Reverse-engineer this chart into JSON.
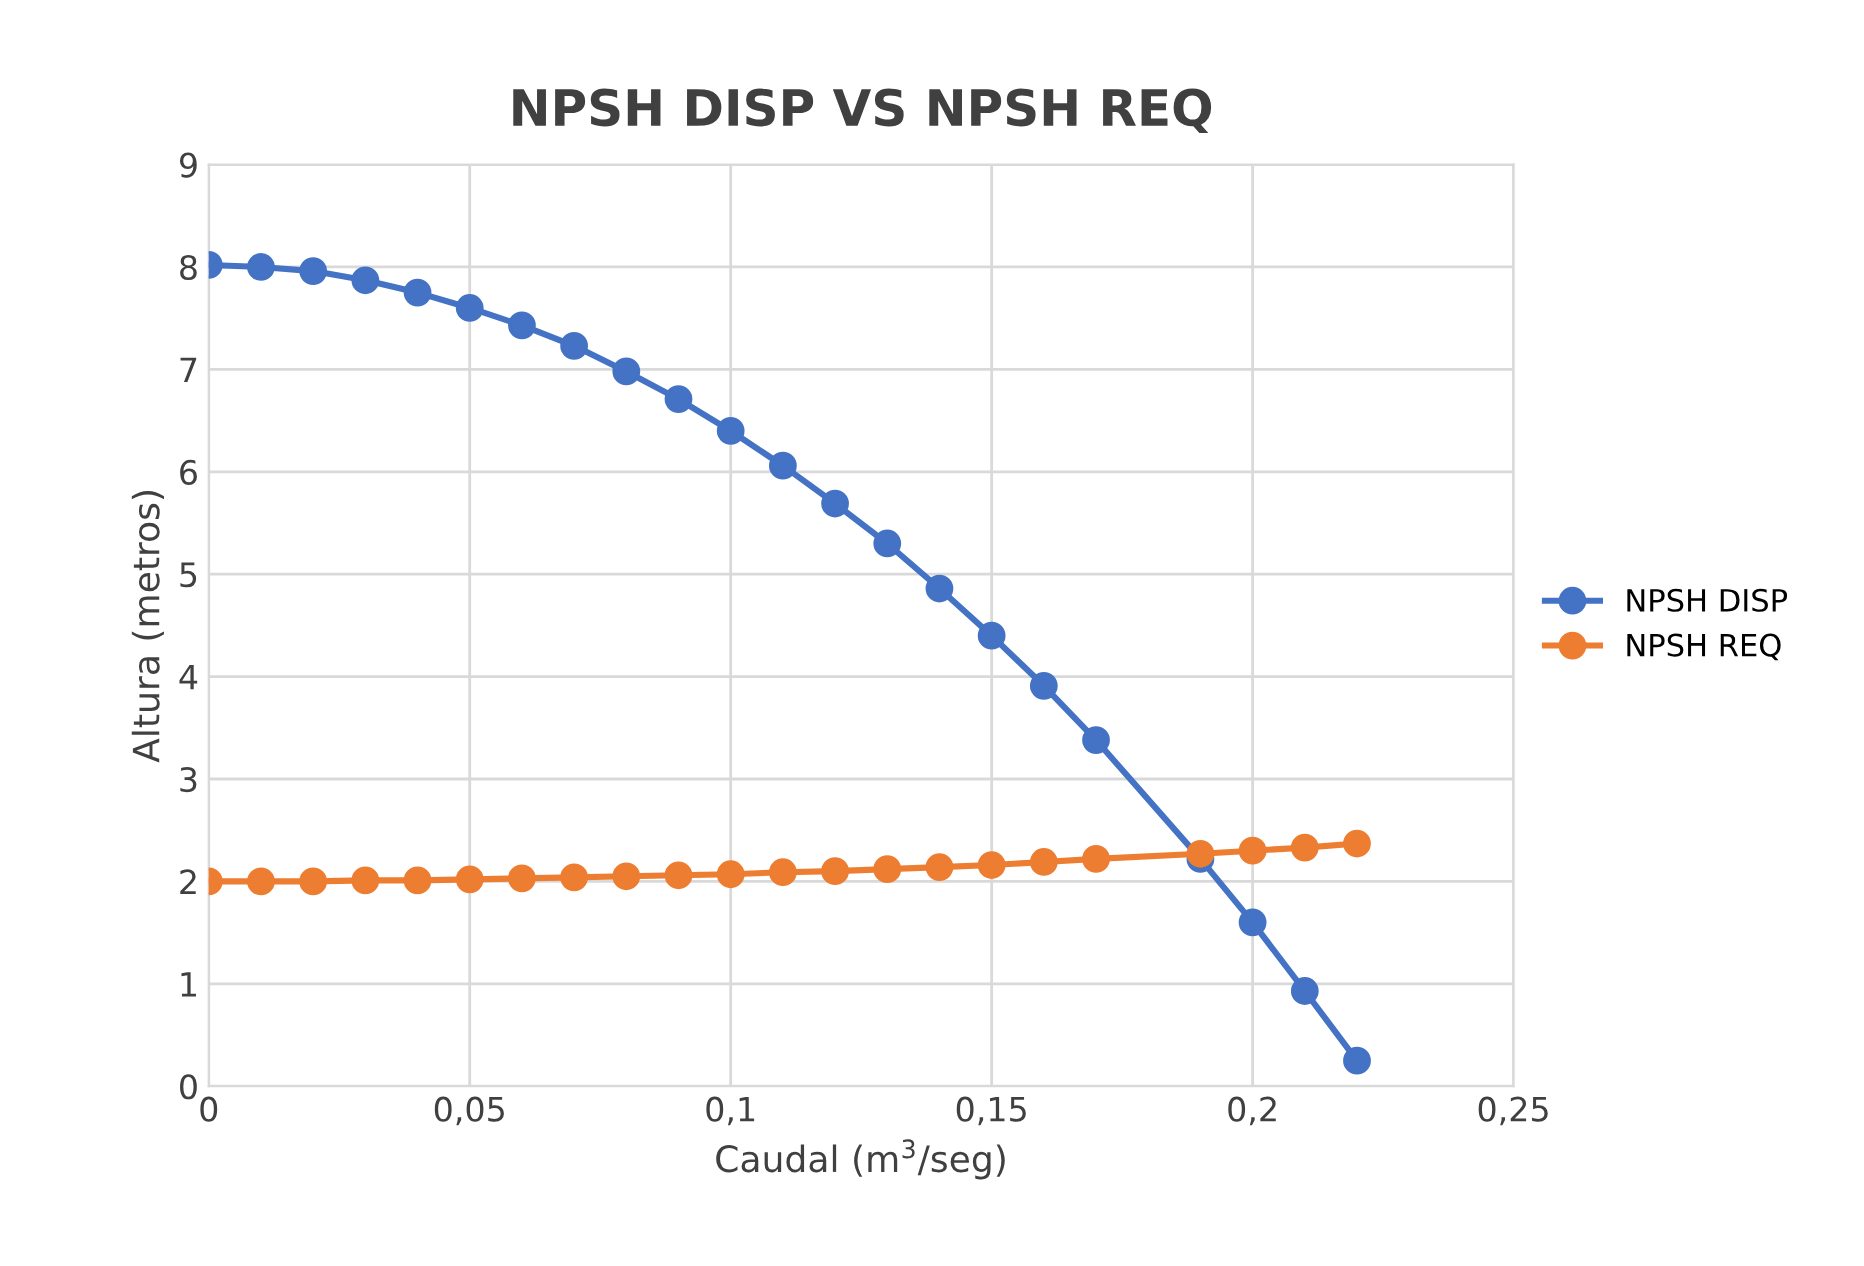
{
  "chart_data": {
    "type": "line",
    "title": "NPSH DISP VS NPSH REQ",
    "xlabel": "Caudal (m$^{3}$/seg)",
    "ylabel": "Altura (metros)",
    "series": [
      {
        "name": "NPSH DISP",
        "color": "#4472c4",
        "x": [
          0,
          0.01,
          0.02,
          0.03,
          0.04,
          0.05,
          0.06,
          0.07,
          0.08,
          0.09,
          0.1,
          0.11,
          0.12,
          0.13,
          0.14,
          0.15,
          0.16,
          0.17,
          0.19,
          0.2,
          0.21,
          0.22
        ],
        "values": [
          8.02,
          8.0,
          7.96,
          7.87,
          7.75,
          7.6,
          7.43,
          7.23,
          6.98,
          6.71,
          6.4,
          6.06,
          5.69,
          5.3,
          4.86,
          4.4,
          3.91,
          3.38,
          2.22,
          1.6,
          0.93,
          0.25
        ]
      },
      {
        "name": "NPSH REQ",
        "color": "#ed7d31",
        "x": [
          0,
          0.01,
          0.02,
          0.03,
          0.04,
          0.05,
          0.06,
          0.07,
          0.08,
          0.09,
          0.1,
          0.11,
          0.12,
          0.13,
          0.14,
          0.15,
          0.16,
          0.17,
          0.19,
          0.2,
          0.21,
          0.22
        ],
        "values": [
          2.0,
          2.0,
          2.0,
          2.01,
          2.01,
          2.02,
          2.03,
          2.04,
          2.05,
          2.06,
          2.07,
          2.09,
          2.1,
          2.12,
          2.14,
          2.16,
          2.19,
          2.22,
          2.27,
          2.3,
          2.33,
          2.37
        ]
      }
    ],
    "xlim": [
      0,
      0.25
    ],
    "xticks": [
      0,
      {
        "value": 0.05,
        "label": "0,05"
      },
      {
        "value": 0.1,
        "label": "0,1"
      },
      {
        "value": 0.15,
        "label": "0,15"
      },
      {
        "value": 0.2,
        "label": "0,2"
      },
      {
        "value": 0.25,
        "label": "0,25"
      }
    ],
    "ylim": [
      0,
      9
    ],
    "yticks": [
      0,
      1,
      2,
      3,
      4,
      5,
      6,
      7,
      8,
      9
    ],
    "grid": true,
    "legend": "right",
    "marker": "circle",
    "line_style": "solid"
  }
}
